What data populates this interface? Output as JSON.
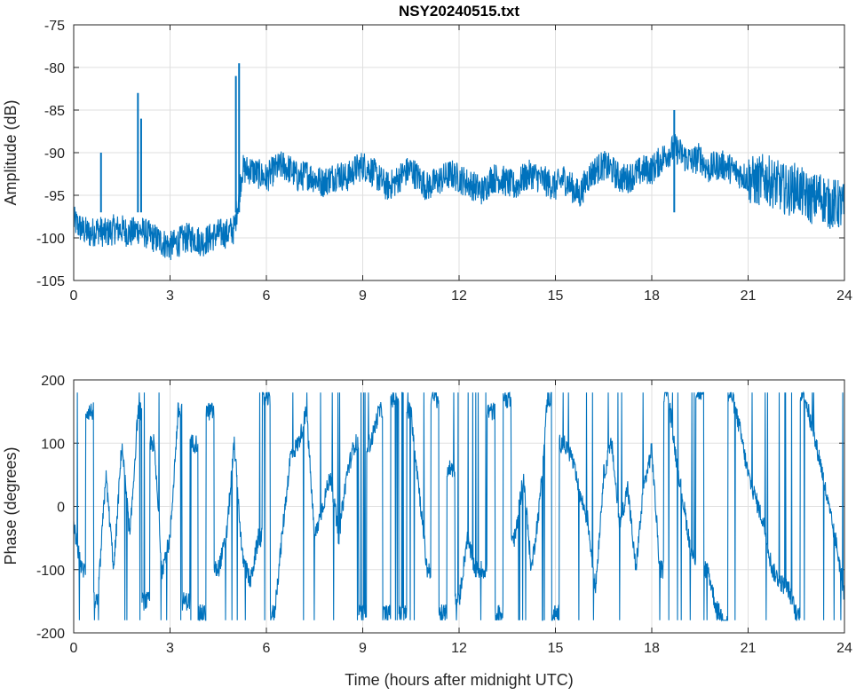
{
  "chart_data": [
    {
      "type": "line",
      "title": "NSY20240515.txt",
      "xlabel": "",
      "ylabel": "Amplitude (dB)",
      "xlim": [
        0,
        24
      ],
      "ylim": [
        -105,
        -75
      ],
      "xticks": [
        0,
        3,
        6,
        9,
        12,
        15,
        18,
        21,
        24
      ],
      "yticks": [
        -105,
        -100,
        -95,
        -90,
        -85,
        -80,
        -75
      ],
      "grid": true,
      "color": "#0072BD",
      "x_step_hours": 0.25,
      "series": [
        {
          "name": "amplitude",
          "values": [
            -98,
            -99,
            -99.5,
            -99,
            -99.5,
            -99,
            -99,
            -99.5,
            -99,
            -99.5,
            -100,
            -100.5,
            -101,
            -100.5,
            -100,
            -100,
            -100.5,
            -100,
            -99.5,
            -99.5,
            -99,
            -92,
            -92,
            -92.5,
            -93,
            -92,
            -91.5,
            -92,
            -93,
            -92.5,
            -93,
            -93.5,
            -93,
            -92.5,
            -93,
            -92,
            -91.5,
            -92,
            -93,
            -94,
            -93.5,
            -92.5,
            -92,
            -93,
            -94,
            -93.5,
            -93,
            -92.5,
            -93,
            -93.5,
            -94,
            -94.5,
            -93,
            -93,
            -93.5,
            -94,
            -93,
            -92.5,
            -93,
            -93.5,
            -94,
            -93,
            -94,
            -95,
            -93,
            -92,
            -91.5,
            -92,
            -93,
            -93,
            -92.5,
            -92,
            -92,
            -91,
            -90,
            -89.5,
            -90.5,
            -91,
            -90.5,
            -92,
            -91.5,
            -91.5,
            -92,
            -92.5,
            -93,
            -93.5,
            -93,
            -93.5,
            -94,
            -94.5,
            -94,
            -95,
            -95.5,
            -95,
            -96,
            -96,
            -96.5
          ]
        }
      ],
      "spikes": [
        {
          "x": 0.85,
          "y": -90
        },
        {
          "x": 2.0,
          "y": -83
        },
        {
          "x": 2.1,
          "y": -86
        },
        {
          "x": 5.05,
          "y": -81
        },
        {
          "x": 5.15,
          "y": -79.5
        },
        {
          "x": 18.7,
          "y": -85
        }
      ]
    },
    {
      "type": "line",
      "title": "",
      "xlabel": "Time (hours after midnight UTC)",
      "ylabel": "Phase (degrees)",
      "xlim": [
        0,
        24
      ],
      "ylim": [
        -200,
        200
      ],
      "xticks": [
        0,
        3,
        6,
        9,
        12,
        15,
        18,
        21,
        24
      ],
      "yticks": [
        -200,
        -100,
        0,
        100,
        200
      ],
      "grid": true,
      "color": "#0072BD",
      "x_step_hours": 0.25,
      "series": [
        {
          "name": "phase",
          "values": [
            -30,
            -100,
            150,
            -150,
            50,
            -100,
            100,
            -50,
            150,
            -150,
            100,
            -100,
            -50,
            150,
            -150,
            100,
            -170,
            150,
            -100,
            -50,
            100,
            -80,
            -120,
            -50,
            170,
            -170,
            -40,
            80,
            100,
            150,
            -50,
            0,
            50,
            -50,
            50,
            100,
            -170,
            100,
            150,
            -170,
            170,
            -170,
            150,
            30,
            -100,
            170,
            -170,
            60,
            -150,
            -50,
            -100,
            -100,
            150,
            -170,
            170,
            -50,
            50,
            -100,
            0,
            170,
            -170,
            100,
            80,
            20,
            -20,
            -130,
            50,
            100,
            -30,
            30,
            -100,
            30,
            90,
            -100,
            180,
            80,
            0,
            -80,
            180,
            -100,
            -160,
            -180,
            175,
            120,
            50,
            10,
            -30,
            -100,
            -120,
            -130,
            -170,
            180,
            120,
            70,
            0,
            -60,
            -140
          ]
        }
      ]
    }
  ]
}
